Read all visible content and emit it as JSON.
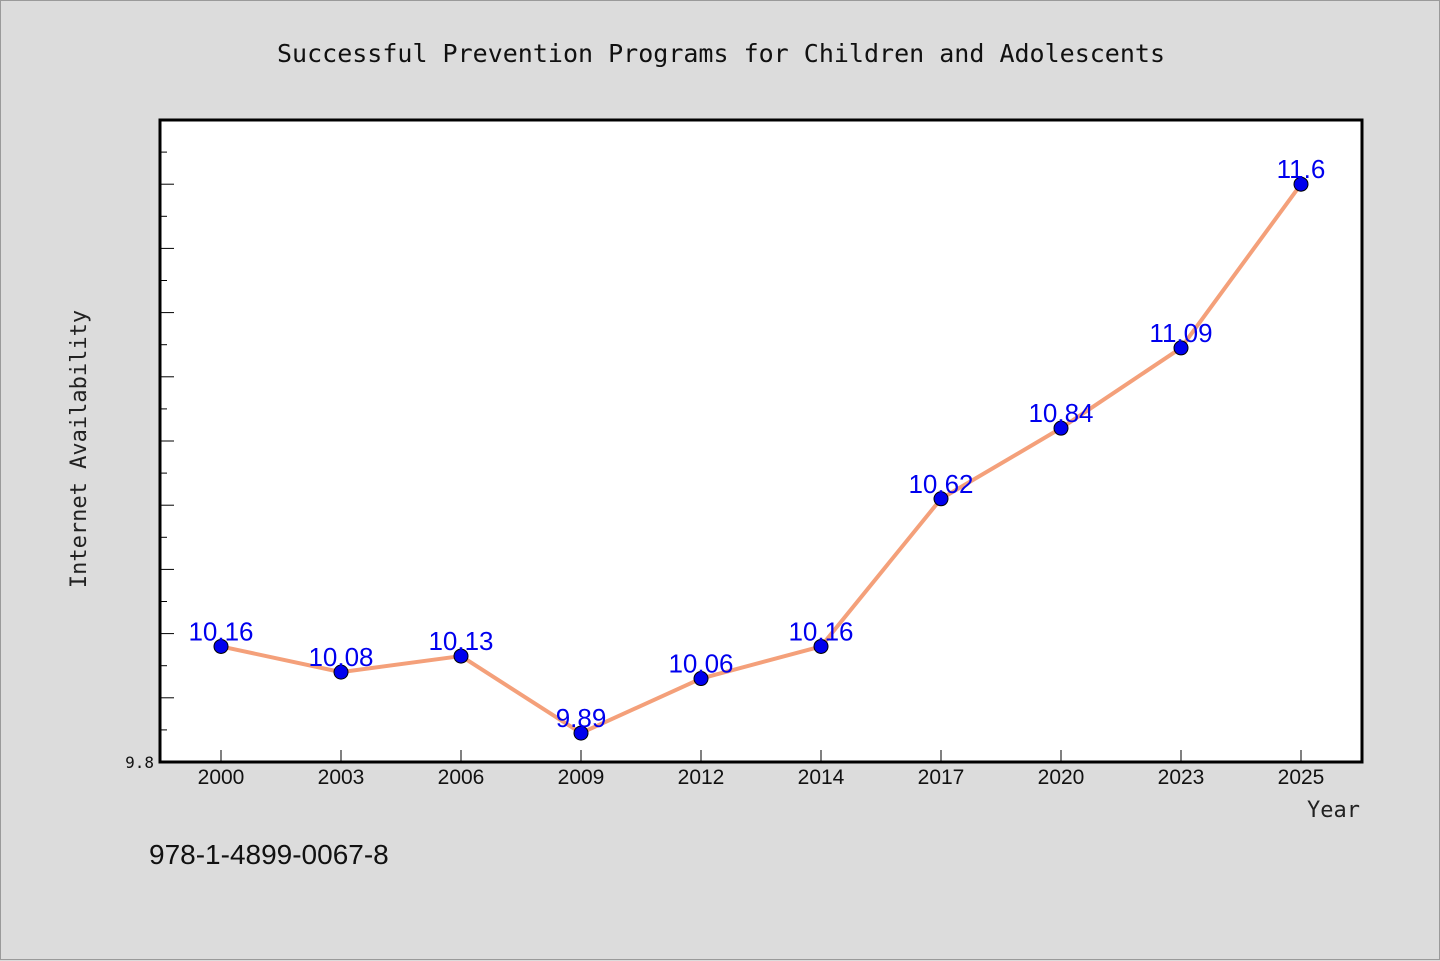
{
  "chart_data": {
    "type": "line",
    "title": "Successful Prevention Programs for Children and Adolescents",
    "xlabel": "Year",
    "ylabel": "Internet Availability",
    "categories": [
      "2000",
      "2003",
      "2006",
      "2009",
      "2012",
      "2014",
      "2017",
      "2020",
      "2023",
      "2025"
    ],
    "series": [
      {
        "values": [
          10.16,
          10.08,
          10.13,
          9.89,
          10.06,
          10.16,
          10.62,
          10.84,
          11.09,
          11.6
        ],
        "data_labels": [
          "10.16",
          "10.08",
          "10.13",
          "9.89",
          "10.06",
          "10.16",
          "10.62",
          "10.84",
          "11.09",
          "11.6"
        ],
        "line_color": "#f4a07a",
        "marker_color": "#0000ee",
        "label_color": "#0000ee"
      }
    ],
    "ylim": [
      9.8,
      11.8
    ],
    "y_tick_labels": [
      "9.8"
    ],
    "y_minor_step": 0.1,
    "grid": false,
    "legend": "none"
  },
  "footer": {
    "isbn": "978-1-4899-0067-8"
  }
}
